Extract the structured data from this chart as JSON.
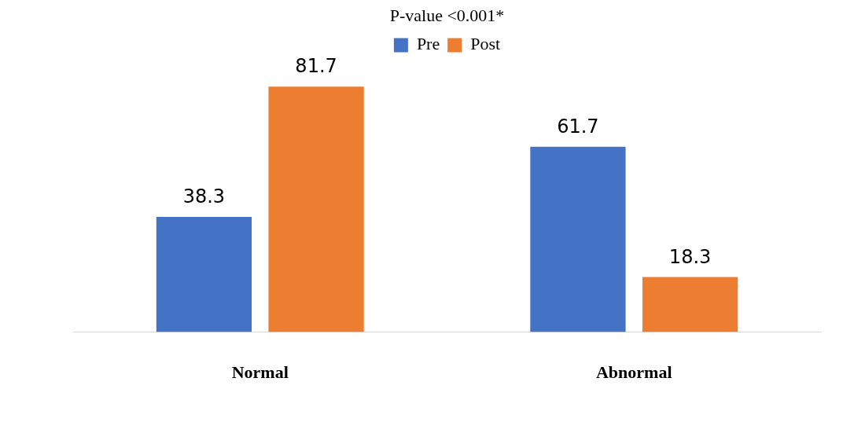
{
  "chart_data": {
    "type": "bar",
    "title": "P-value <0.001*",
    "categories": [
      "Normal",
      "Abnormal"
    ],
    "series": [
      {
        "name": "Pre",
        "color": "#4472c4",
        "values": [
          38.3,
          61.7
        ]
      },
      {
        "name": "Post",
        "color": "#ed7d31",
        "values": [
          81.7,
          18.3
        ]
      }
    ],
    "data_labels": true,
    "legend": "top",
    "grid": false
  }
}
